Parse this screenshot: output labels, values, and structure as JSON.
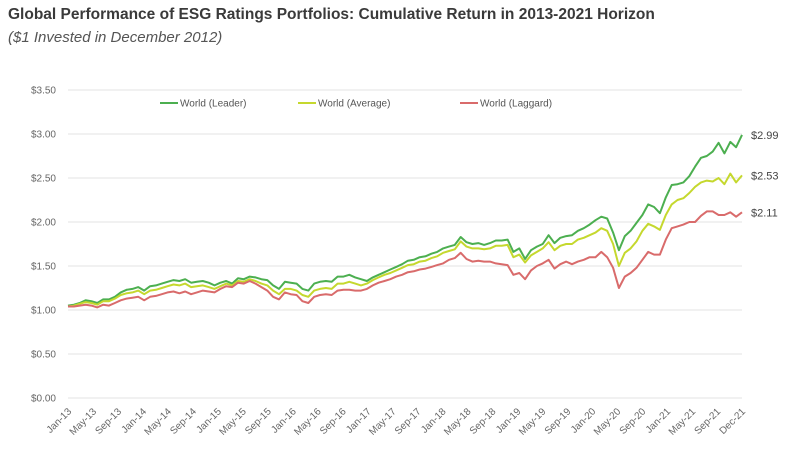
{
  "chart_data": {
    "type": "line",
    "title": "Global Performance of ESG Ratings Portfolios: Cumulative Return in 2013-2021 Horizon",
    "subtitle": "($1 Invested in December 2012)",
    "xlabel": "",
    "ylabel": "",
    "ylim": [
      0,
      3.5
    ],
    "y_ticks": [
      "$0.00",
      "$0.50",
      "$1.00",
      "$1.50",
      "$2.00",
      "$2.50",
      "$3.00",
      "$3.50"
    ],
    "y_tick_values": [
      0,
      0.5,
      1.0,
      1.5,
      2.0,
      2.5,
      3.0,
      3.5
    ],
    "x_ticks": [
      "Jan-13",
      "May-13",
      "Sep-13",
      "Jan-14",
      "May-14",
      "Sep-14",
      "Jan-15",
      "May-15",
      "Sep-15",
      "Jan-16",
      "May-16",
      "Sep-16",
      "Jan-17",
      "May-17",
      "Sep-17",
      "Jan-18",
      "May-18",
      "Sep-18",
      "Jan-19",
      "May-19",
      "Sep-19",
      "Jan-20",
      "May-20",
      "Sep-20",
      "Jan-21",
      "May-21",
      "Sep-21",
      "Dec-21"
    ],
    "grid": "horizontal",
    "legend_position": "top",
    "series": [
      {
        "name": "World (Leader)",
        "color": "#4caf50",
        "end_label": "$2.99",
        "values": [
          1.05,
          1.06,
          1.08,
          1.11,
          1.1,
          1.08,
          1.12,
          1.12,
          1.15,
          1.2,
          1.23,
          1.24,
          1.26,
          1.22,
          1.27,
          1.28,
          1.3,
          1.32,
          1.34,
          1.33,
          1.35,
          1.31,
          1.32,
          1.33,
          1.31,
          1.28,
          1.31,
          1.33,
          1.3,
          1.36,
          1.35,
          1.38,
          1.37,
          1.35,
          1.34,
          1.28,
          1.24,
          1.32,
          1.31,
          1.3,
          1.24,
          1.22,
          1.3,
          1.32,
          1.33,
          1.32,
          1.38,
          1.38,
          1.4,
          1.37,
          1.35,
          1.33,
          1.37,
          1.4,
          1.43,
          1.46,
          1.49,
          1.52,
          1.56,
          1.57,
          1.6,
          1.61,
          1.64,
          1.66,
          1.7,
          1.72,
          1.74,
          1.83,
          1.77,
          1.75,
          1.76,
          1.74,
          1.76,
          1.79,
          1.79,
          1.8,
          1.66,
          1.7,
          1.58,
          1.68,
          1.72,
          1.75,
          1.85,
          1.76,
          1.82,
          1.84,
          1.85,
          1.9,
          1.93,
          1.97,
          2.02,
          2.06,
          2.04,
          1.88,
          1.68,
          1.84,
          1.9,
          1.99,
          2.08,
          2.2,
          2.17,
          2.1,
          2.28,
          2.42,
          2.43,
          2.45,
          2.52,
          2.63,
          2.73,
          2.75,
          2.8,
          2.9,
          2.78,
          2.91,
          2.85,
          2.99
        ]
      },
      {
        "name": "World (Average)",
        "color": "#c5d82e",
        "end_label": "$2.53",
        "values": [
          1.04,
          1.05,
          1.07,
          1.09,
          1.08,
          1.06,
          1.1,
          1.1,
          1.13,
          1.17,
          1.19,
          1.2,
          1.22,
          1.18,
          1.22,
          1.23,
          1.25,
          1.27,
          1.29,
          1.28,
          1.3,
          1.26,
          1.27,
          1.28,
          1.26,
          1.24,
          1.27,
          1.3,
          1.28,
          1.33,
          1.32,
          1.35,
          1.33,
          1.3,
          1.28,
          1.22,
          1.18,
          1.24,
          1.24,
          1.22,
          1.17,
          1.15,
          1.22,
          1.24,
          1.25,
          1.24,
          1.3,
          1.3,
          1.32,
          1.3,
          1.28,
          1.3,
          1.34,
          1.37,
          1.4,
          1.42,
          1.45,
          1.48,
          1.51,
          1.52,
          1.55,
          1.56,
          1.59,
          1.61,
          1.65,
          1.67,
          1.69,
          1.78,
          1.72,
          1.7,
          1.7,
          1.69,
          1.7,
          1.73,
          1.73,
          1.74,
          1.6,
          1.63,
          1.54,
          1.62,
          1.66,
          1.7,
          1.77,
          1.68,
          1.73,
          1.75,
          1.75,
          1.8,
          1.82,
          1.85,
          1.88,
          1.93,
          1.9,
          1.75,
          1.5,
          1.65,
          1.7,
          1.78,
          1.9,
          1.98,
          1.95,
          1.91,
          2.08,
          2.2,
          2.25,
          2.27,
          2.33,
          2.4,
          2.45,
          2.47,
          2.46,
          2.5,
          2.43,
          2.55,
          2.45,
          2.53
        ]
      },
      {
        "name": "World (Laggard)",
        "color": "#d96b6b",
        "end_label": "$2.11",
        "values": [
          1.04,
          1.04,
          1.05,
          1.06,
          1.05,
          1.03,
          1.06,
          1.05,
          1.08,
          1.11,
          1.13,
          1.14,
          1.15,
          1.11,
          1.15,
          1.16,
          1.18,
          1.2,
          1.21,
          1.19,
          1.21,
          1.18,
          1.2,
          1.22,
          1.21,
          1.2,
          1.24,
          1.27,
          1.26,
          1.31,
          1.3,
          1.33,
          1.3,
          1.26,
          1.22,
          1.15,
          1.12,
          1.2,
          1.18,
          1.17,
          1.1,
          1.08,
          1.15,
          1.17,
          1.18,
          1.17,
          1.22,
          1.23,
          1.23,
          1.22,
          1.22,
          1.24,
          1.28,
          1.31,
          1.33,
          1.35,
          1.38,
          1.4,
          1.43,
          1.44,
          1.46,
          1.47,
          1.49,
          1.51,
          1.53,
          1.57,
          1.59,
          1.65,
          1.58,
          1.55,
          1.56,
          1.55,
          1.55,
          1.53,
          1.52,
          1.51,
          1.4,
          1.42,
          1.35,
          1.45,
          1.5,
          1.53,
          1.57,
          1.47,
          1.52,
          1.55,
          1.52,
          1.55,
          1.57,
          1.6,
          1.6,
          1.66,
          1.6,
          1.48,
          1.25,
          1.38,
          1.42,
          1.48,
          1.57,
          1.66,
          1.63,
          1.63,
          1.8,
          1.93,
          1.95,
          1.97,
          2.0,
          2.0,
          2.07,
          2.12,
          2.12,
          2.08,
          2.08,
          2.11,
          2.06,
          2.11
        ]
      }
    ]
  }
}
